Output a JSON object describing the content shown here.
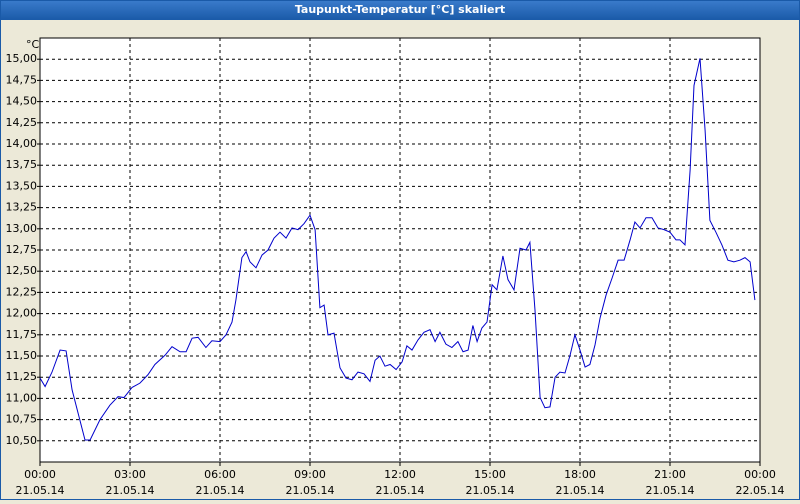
{
  "chart_data": {
    "type": "line",
    "title": "Taupunkt-Temperatur [°C] skaliert",
    "y_unit": "°C",
    "x": [
      0,
      0.17,
      0.4,
      0.67,
      0.87,
      1.07,
      1.5,
      1.67,
      2,
      2.33,
      2.6,
      2.8,
      3.07,
      3.33,
      3.6,
      3.83,
      4.17,
      4.4,
      4.67,
      4.87,
      5.07,
      5.27,
      5.53,
      5.73,
      6,
      6.2,
      6.4,
      6.53,
      6.73,
      6.87,
      7,
      7.2,
      7.4,
      7.6,
      7.8,
      8,
      8.2,
      8.4,
      8.6,
      8.8,
      9,
      9.17,
      9.33,
      9.47,
      9.6,
      9.8,
      10,
      10.2,
      10.4,
      10.6,
      10.8,
      11,
      11.17,
      11.33,
      11.5,
      11.67,
      11.87,
      12.07,
      12.23,
      12.4,
      12.6,
      12.8,
      13,
      13.17,
      13.33,
      13.53,
      13.73,
      13.93,
      14.1,
      14.27,
      14.43,
      14.57,
      14.73,
      14.9,
      15.07,
      15.23,
      15.43,
      15.6,
      15.8,
      16,
      16.2,
      16.33,
      16.5,
      16.67,
      16.83,
      17,
      17.17,
      17.33,
      17.5,
      17.67,
      17.83,
      18,
      18.17,
      18.33,
      18.5,
      18.67,
      18.87,
      19.07,
      19.27,
      19.47,
      19.67,
      19.83,
      20,
      20.2,
      20.4,
      20.6,
      20.8,
      21,
      21.2,
      21.33,
      21.5,
      21.67,
      21.8,
      22,
      22.17,
      22.33,
      22.53,
      22.73,
      22.93,
      23.13,
      23.33,
      23.5,
      23.67,
      23.83
    ],
    "series": [
      {
        "name": "Taupunkt-Temperatur",
        "color": "#0000cc",
        "values": [
          11.24,
          11.14,
          11.31,
          11.57,
          11.56,
          11.1,
          10.51,
          10.51,
          10.75,
          10.92,
          11.02,
          11.01,
          11.13,
          11.18,
          11.28,
          11.4,
          11.51,
          11.61,
          11.55,
          11.55,
          11.71,
          11.72,
          11.6,
          11.68,
          11.67,
          11.75,
          11.9,
          12.16,
          12.66,
          12.73,
          12.61,
          12.54,
          12.69,
          12.75,
          12.89,
          12.96,
          12.89,
          13.01,
          12.99,
          13.06,
          13.16,
          12.99,
          12.07,
          12.1,
          11.75,
          11.77,
          11.36,
          11.24,
          11.22,
          11.31,
          11.29,
          11.2,
          11.45,
          11.5,
          11.38,
          11.4,
          11.34,
          11.43,
          11.62,
          11.57,
          11.69,
          11.78,
          11.81,
          11.67,
          11.78,
          11.64,
          11.6,
          11.67,
          11.55,
          11.57,
          11.86,
          11.67,
          11.83,
          11.9,
          12.34,
          12.28,
          12.68,
          12.4,
          12.28,
          12.77,
          12.75,
          12.84,
          12.04,
          11.01,
          10.89,
          10.9,
          11.25,
          11.31,
          11.3,
          11.51,
          11.75,
          11.57,
          11.37,
          11.4,
          11.63,
          11.95,
          12.22,
          12.42,
          12.63,
          12.63,
          12.87,
          13.08,
          13.01,
          13.13,
          13.13,
          13.01,
          12.99,
          12.96,
          12.87,
          12.87,
          12.81,
          13.69,
          14.69,
          15.01,
          14.16,
          13.1,
          12.96,
          12.81,
          12.63,
          12.61,
          12.63,
          12.66,
          12.61,
          12.16
        ]
      }
    ],
    "xlim": [
      0,
      24
    ],
    "xticks": [
      {
        "value": 0,
        "label": "00:00",
        "date": "21.05.14"
      },
      {
        "value": 3,
        "label": "03:00",
        "date": "21.05.14"
      },
      {
        "value": 6,
        "label": "06:00",
        "date": "21.05.14"
      },
      {
        "value": 9,
        "label": "09:00",
        "date": "21.05.14"
      },
      {
        "value": 12,
        "label": "12:00",
        "date": "21.05.14"
      },
      {
        "value": 15,
        "label": "15:00",
        "date": "21.05.14"
      },
      {
        "value": 18,
        "label": "18:00",
        "date": "21.05.14"
      },
      {
        "value": 21,
        "label": "21:00",
        "date": "21.05.14"
      },
      {
        "value": 24,
        "label": "00:00",
        "date": "22.05.14"
      }
    ],
    "ylim": [
      10.25,
      15.25
    ],
    "yticks": [
      {
        "value": 10.5,
        "label": "10,50"
      },
      {
        "value": 10.75,
        "label": "10,75"
      },
      {
        "value": 11,
        "label": "11,00"
      },
      {
        "value": 11.25,
        "label": "11,25"
      },
      {
        "value": 11.5,
        "label": "11,50"
      },
      {
        "value": 11.75,
        "label": "11,75"
      },
      {
        "value": 12,
        "label": "12,00"
      },
      {
        "value": 12.25,
        "label": "12,25"
      },
      {
        "value": 12.5,
        "label": "12,50"
      },
      {
        "value": 12.75,
        "label": "12,75"
      },
      {
        "value": 13,
        "label": "13,00"
      },
      {
        "value": 13.25,
        "label": "13,25"
      },
      {
        "value": 13.5,
        "label": "13,50"
      },
      {
        "value": 13.75,
        "label": "13,75"
      },
      {
        "value": 14,
        "label": "14,00"
      },
      {
        "value": 14.25,
        "label": "14,25"
      },
      {
        "value": 14.5,
        "label": "14,50"
      },
      {
        "value": 14.75,
        "label": "14,75"
      },
      {
        "value": 15,
        "label": "15,00"
      }
    ],
    "grid": true
  }
}
